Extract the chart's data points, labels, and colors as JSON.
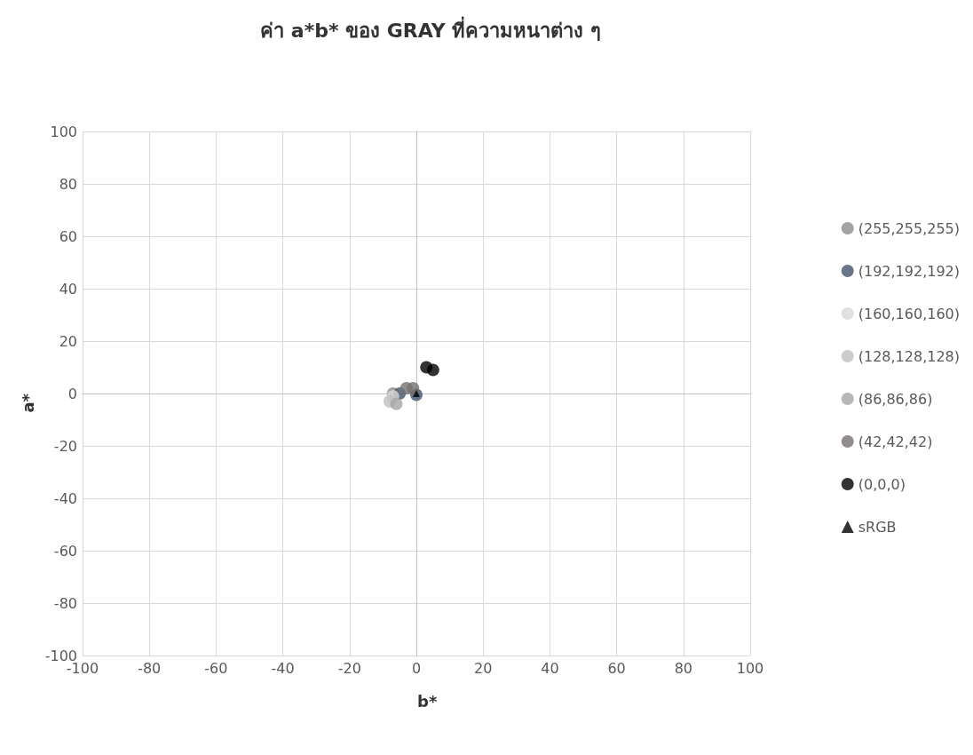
{
  "chart_data": {
    "type": "scatter",
    "title": "ค่า a*b* ของ GRAY ที่ความหนาต่าง ๆ",
    "xlabel": "b*",
    "ylabel": "a*",
    "xlim": [
      -100,
      100
    ],
    "xticks": [
      -100,
      -80,
      -60,
      -40,
      -20,
      0,
      20,
      40,
      60,
      80,
      100
    ],
    "ylim": [
      -100,
      100
    ],
    "yticks": [
      -100,
      -80,
      -60,
      -40,
      -20,
      0,
      20,
      40,
      60,
      80,
      100
    ],
    "grid": true,
    "legend": "right",
    "marker": "circle",
    "series": [
      {
        "name": "(255,255,255)",
        "color": "#8c8c8c",
        "x": [
          -7
        ],
        "values": [
          0
        ]
      },
      {
        "name": "(192,192,192)",
        "color": "#44546a",
        "x": [
          -5,
          0
        ],
        "values": [
          0,
          -0.5
        ]
      },
      {
        "name": "(160,160,160)",
        "color": "#d9d9d9",
        "x": [
          -7
        ],
        "values": [
          -1
        ]
      },
      {
        "name": "(128,128,128)",
        "color": "#bfbfbf",
        "x": [
          -8
        ],
        "values": [
          -3
        ]
      },
      {
        "name": "(86,86,86)",
        "color": "#a5a5a5",
        "x": [
          -6
        ],
        "values": [
          -4
        ]
      },
      {
        "name": "(42,42,42)",
        "color": "#767171",
        "x": [
          -3,
          -1
        ],
        "values": [
          2,
          2
        ]
      },
      {
        "name": "(0,0,0)",
        "color": "#000000",
        "x": [
          3,
          5
        ],
        "values": [
          10,
          9
        ]
      },
      {
        "name": "sRGB",
        "color": "#000000",
        "marker": "triangle",
        "x": [
          0
        ],
        "values": [
          0
        ]
      }
    ]
  }
}
